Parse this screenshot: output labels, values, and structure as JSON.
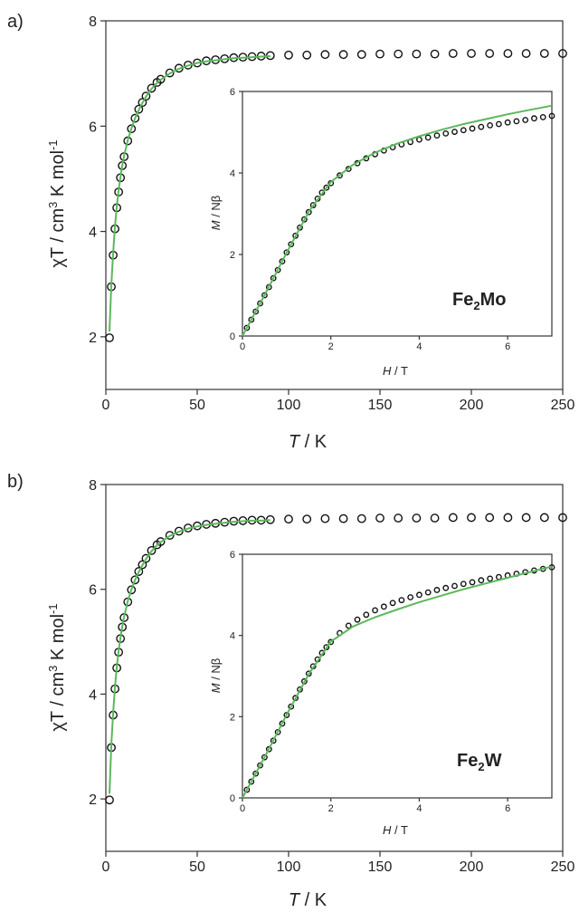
{
  "figure": {
    "panels": [
      {
        "panel_label": "a)",
        "main_xlabel_italic": "T",
        "main_xlabel_rest": " / K",
        "main_ylabel_prefix": "χT / cm",
        "main_ylabel_sup1": "3",
        "main_ylabel_mid": " K mol",
        "main_ylabel_sup2": "-1",
        "inset_xlabel_italic": "H",
        "inset_xlabel_rest": " / T",
        "inset_ylabel_italic": "M",
        "inset_ylabel_rest": " / Nβ",
        "compound_main": "Fe",
        "compound_sub": "2",
        "compound_tail": "Mo"
      },
      {
        "panel_label": "b)",
        "main_xlabel_italic": "T",
        "main_xlabel_rest": " / K",
        "main_ylabel_prefix": "χT / cm",
        "main_ylabel_sup1": "3",
        "main_ylabel_mid": " K mol",
        "main_ylabel_sup2": "-1",
        "inset_xlabel_italic": "H",
        "inset_xlabel_rest": " / T",
        "inset_ylabel_italic": "M",
        "inset_ylabel_rest": " / Nβ",
        "compound_main": "Fe",
        "compound_sub": "2",
        "compound_tail": "W"
      }
    ]
  },
  "chart_data": [
    {
      "type": "scatter",
      "panel": "a)",
      "xlabel": "T / K",
      "ylabel": "χT / cm3 K mol-1",
      "xlim": [
        0,
        250
      ],
      "ylim": [
        1,
        8
      ],
      "xticks": [
        0,
        50,
        100,
        150,
        200,
        250
      ],
      "yticks": [
        2,
        4,
        6,
        8
      ],
      "color_fit": "#5cb85c",
      "color_markers": "#111111",
      "series": [
        {
          "kind": "markers",
          "x": [
            2,
            3,
            4,
            5,
            6,
            7,
            8,
            9,
            10,
            12,
            14,
            16,
            18,
            20,
            22,
            25,
            28,
            30,
            35,
            40,
            45,
            50,
            55,
            60,
            65,
            70,
            75,
            80,
            85,
            90,
            100,
            110,
            120,
            130,
            140,
            150,
            160,
            170,
            180,
            190,
            200,
            210,
            220,
            230,
            240,
            250
          ],
          "y": [
            1.98,
            2.95,
            3.55,
            4.05,
            4.45,
            4.75,
            5.02,
            5.25,
            5.42,
            5.72,
            5.95,
            6.15,
            6.32,
            6.45,
            6.57,
            6.72,
            6.83,
            6.89,
            7.01,
            7.1,
            7.16,
            7.2,
            7.24,
            7.26,
            7.28,
            7.3,
            7.31,
            7.32,
            7.33,
            7.34,
            7.35,
            7.35,
            7.36,
            7.36,
            7.36,
            7.37,
            7.37,
            7.37,
            7.37,
            7.38,
            7.38,
            7.38,
            7.38,
            7.38,
            7.38,
            7.38
          ]
        },
        {
          "kind": "fit",
          "x": [
            2,
            3,
            4,
            5,
            6,
            7,
            8,
            9,
            10,
            12,
            14,
            16,
            18,
            20,
            22,
            25,
            28,
            30,
            35,
            40,
            45,
            50,
            55,
            60,
            65,
            70,
            75,
            80,
            85,
            90
          ],
          "y": [
            2.1,
            3.0,
            3.6,
            4.1,
            4.48,
            4.78,
            5.04,
            5.26,
            5.44,
            5.73,
            5.96,
            6.15,
            6.31,
            6.44,
            6.56,
            6.71,
            6.82,
            6.88,
            7.0,
            7.09,
            7.15,
            7.2,
            7.23,
            7.25,
            7.27,
            7.29,
            7.3,
            7.31,
            7.32,
            7.33
          ]
        }
      ],
      "inset": {
        "type": "scatter",
        "xlabel": "H / T",
        "ylabel": "M / Nβ",
        "xlim": [
          0,
          7
        ],
        "ylim": [
          0,
          6
        ],
        "xticks": [
          0,
          2,
          4,
          6
        ],
        "yticks": [
          0,
          2,
          4,
          6
        ],
        "series": [
          {
            "kind": "markers",
            "x": [
              0.1,
              0.2,
              0.3,
              0.4,
              0.5,
              0.6,
              0.7,
              0.8,
              0.9,
              1.0,
              1.1,
              1.2,
              1.3,
              1.4,
              1.5,
              1.6,
              1.7,
              1.8,
              1.9,
              2.0,
              2.2,
              2.4,
              2.6,
              2.8,
              3.0,
              3.2,
              3.4,
              3.6,
              3.8,
              4.0,
              4.2,
              4.4,
              4.6,
              4.8,
              5.0,
              5.2,
              5.4,
              5.6,
              5.8,
              6.0,
              6.2,
              6.4,
              6.6,
              6.8,
              7.0
            ],
            "y": [
              0.2,
              0.4,
              0.6,
              0.8,
              1.0,
              1.2,
              1.42,
              1.62,
              1.83,
              2.05,
              2.25,
              2.46,
              2.66,
              2.86,
              3.04,
              3.21,
              3.37,
              3.52,
              3.64,
              3.75,
              3.94,
              4.1,
              4.24,
              4.36,
              4.46,
              4.55,
              4.63,
              4.7,
              4.76,
              4.82,
              4.87,
              4.92,
              4.97,
              5.01,
              5.05,
              5.09,
              5.13,
              5.17,
              5.2,
              5.24,
              5.27,
              5.3,
              5.34,
              5.37,
              5.4
            ]
          },
          {
            "kind": "fit",
            "x": [
              0,
              0.5,
              1.0,
              1.5,
              2.0,
              2.5,
              3.0,
              3.5,
              4.0,
              4.5,
              5.0,
              5.5,
              6.0,
              6.5,
              7.0
            ],
            "y": [
              0,
              1.0,
              2.05,
              3.05,
              3.78,
              4.2,
              4.5,
              4.72,
              4.9,
              5.06,
              5.2,
              5.32,
              5.44,
              5.55,
              5.65
            ]
          }
        ]
      }
    },
    {
      "type": "scatter",
      "panel": "b)",
      "xlabel": "T / K",
      "ylabel": "χT / cm3 K mol-1",
      "xlim": [
        0,
        250
      ],
      "ylim": [
        1,
        8
      ],
      "xticks": [
        0,
        50,
        100,
        150,
        200,
        250
      ],
      "yticks": [
        2,
        4,
        6,
        8
      ],
      "color_fit": "#5cb85c",
      "color_markers": "#111111",
      "series": [
        {
          "kind": "markers",
          "x": [
            2,
            3,
            4,
            5,
            6,
            7,
            8,
            9,
            10,
            12,
            14,
            16,
            18,
            20,
            22,
            25,
            28,
            30,
            35,
            40,
            45,
            50,
            55,
            60,
            65,
            70,
            75,
            80,
            85,
            90,
            100,
            110,
            120,
            130,
            140,
            150,
            160,
            170,
            180,
            190,
            200,
            210,
            220,
            230,
            240,
            250
          ],
          "y": [
            1.98,
            2.98,
            3.6,
            4.1,
            4.5,
            4.8,
            5.06,
            5.28,
            5.46,
            5.76,
            5.99,
            6.18,
            6.34,
            6.47,
            6.59,
            6.74,
            6.85,
            6.91,
            7.03,
            7.11,
            7.17,
            7.21,
            7.24,
            7.26,
            7.28,
            7.3,
            7.31,
            7.32,
            7.32,
            7.33,
            7.34,
            7.34,
            7.35,
            7.35,
            7.35,
            7.36,
            7.36,
            7.36,
            7.36,
            7.37,
            7.37,
            7.37,
            7.37,
            7.37,
            7.37,
            7.37
          ]
        },
        {
          "kind": "fit",
          "x": [
            2,
            3,
            4,
            5,
            6,
            7,
            8,
            9,
            10,
            12,
            14,
            16,
            18,
            20,
            22,
            25,
            28,
            30,
            35,
            40,
            45,
            50,
            55,
            60,
            65,
            70,
            75,
            80,
            85,
            90
          ],
          "y": [
            2.1,
            3.05,
            3.65,
            4.14,
            4.52,
            4.82,
            5.08,
            5.3,
            5.48,
            5.77,
            6.0,
            6.18,
            6.33,
            6.46,
            6.58,
            6.73,
            6.84,
            6.9,
            7.02,
            7.1,
            7.16,
            7.2,
            7.23,
            7.25,
            7.27,
            7.29,
            7.3,
            7.31,
            7.31,
            7.32
          ]
        }
      ],
      "inset": {
        "type": "scatter",
        "xlabel": "H / T",
        "ylabel": "M / Nβ",
        "xlim": [
          0,
          7
        ],
        "ylim": [
          0,
          6
        ],
        "xticks": [
          0,
          2,
          4,
          6
        ],
        "yticks": [
          0,
          2,
          4,
          6
        ],
        "series": [
          {
            "kind": "markers",
            "x": [
              0.1,
              0.2,
              0.3,
              0.4,
              0.5,
              0.6,
              0.7,
              0.8,
              0.9,
              1.0,
              1.1,
              1.2,
              1.3,
              1.4,
              1.5,
              1.6,
              1.7,
              1.8,
              1.9,
              2.0,
              2.2,
              2.4,
              2.6,
              2.8,
              3.0,
              3.2,
              3.4,
              3.6,
              3.8,
              4.0,
              4.2,
              4.4,
              4.6,
              4.8,
              5.0,
              5.2,
              5.4,
              5.6,
              5.8,
              6.0,
              6.2,
              6.4,
              6.6,
              6.8,
              7.0
            ],
            "y": [
              0.2,
              0.4,
              0.6,
              0.8,
              1.0,
              1.2,
              1.41,
              1.62,
              1.83,
              2.04,
              2.25,
              2.46,
              2.67,
              2.87,
              3.06,
              3.24,
              3.41,
              3.57,
              3.71,
              3.84,
              4.06,
              4.24,
              4.39,
              4.51,
              4.62,
              4.71,
              4.8,
              4.87,
              4.94,
              5.0,
              5.06,
              5.12,
              5.17,
              5.22,
              5.27,
              5.31,
              5.36,
              5.4,
              5.44,
              5.48,
              5.52,
              5.56,
              5.6,
              5.64,
              5.68
            ]
          },
          {
            "kind": "fit",
            "x": [
              0,
              0.5,
              1.0,
              1.5,
              2.0,
              2.5,
              3.0,
              3.5,
              4.0,
              4.5,
              5.0,
              5.5,
              6.0,
              6.5,
              7.0
            ],
            "y": [
              0,
              1.0,
              2.05,
              3.05,
              3.85,
              4.22,
              4.45,
              4.64,
              4.82,
              4.98,
              5.14,
              5.28,
              5.42,
              5.56,
              5.7
            ]
          }
        ]
      }
    }
  ]
}
